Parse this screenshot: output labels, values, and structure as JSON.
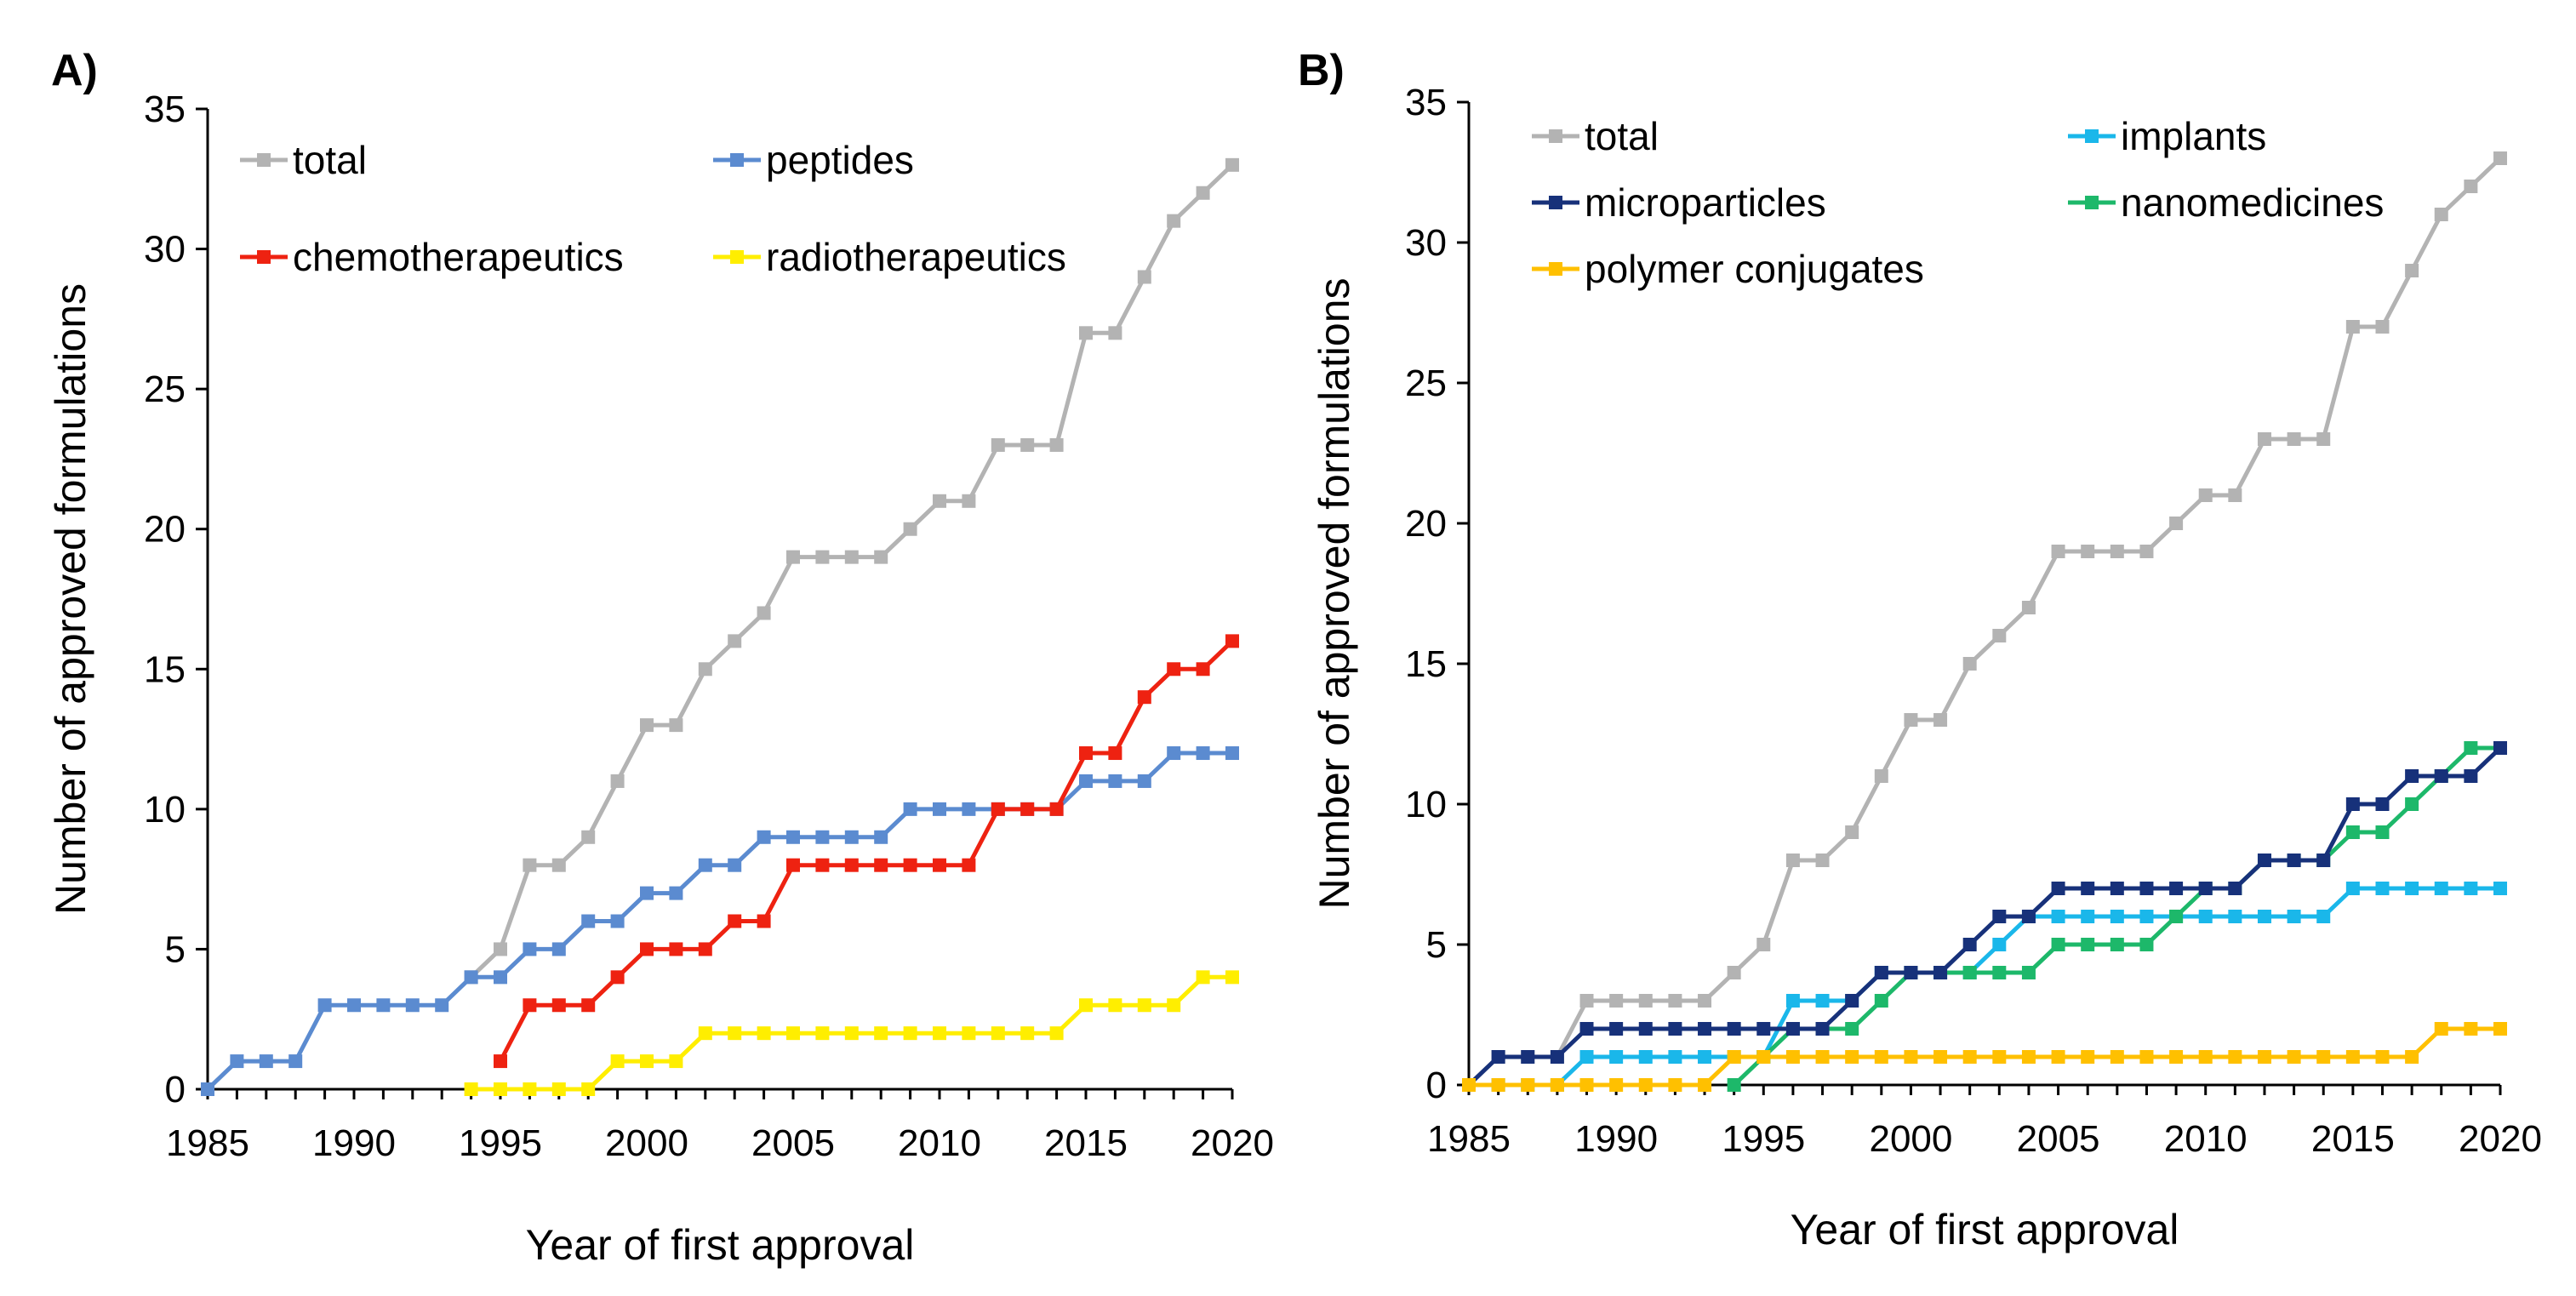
{
  "chart_data": [
    {
      "panel_label": "A)",
      "type": "line",
      "xlabel": "Year of first approval",
      "ylabel": "Number of approved formulations",
      "xlim": [
        1985,
        2020
      ],
      "ylim": [
        0,
        35
      ],
      "xticks": [
        "1985",
        "1990",
        "1995",
        "2000",
        "2005",
        "2010",
        "2015",
        "2020"
      ],
      "yticks": [
        "0",
        "5",
        "10",
        "15",
        "20",
        "25",
        "30",
        "35"
      ],
      "series": [
        {
          "name": "total",
          "color": "#b3b3b3",
          "start": 1994,
          "values": [
            4,
            5,
            8,
            8,
            9,
            11,
            13,
            13,
            15,
            16,
            17,
            19,
            19,
            19,
            19,
            20,
            21,
            21,
            23,
            23,
            23,
            27,
            27,
            29,
            31,
            32,
            33
          ]
        },
        {
          "name": "peptides",
          "color": "#5b8bd0",
          "start": 1985,
          "values": [
            0,
            1,
            1,
            1,
            3,
            3,
            3,
            3,
            3,
            4,
            4,
            5,
            5,
            6,
            6,
            7,
            7,
            8,
            8,
            9,
            9,
            9,
            9,
            9,
            10,
            10,
            10,
            10,
            10,
            10,
            11,
            11,
            11,
            12,
            12,
            12
          ]
        },
        {
          "name": "chemotherapeutics",
          "color": "#ee2211",
          "start": 1995,
          "values": [
            1,
            3,
            3,
            3,
            4,
            5,
            5,
            5,
            6,
            6,
            8,
            8,
            8,
            8,
            8,
            8,
            8,
            10,
            10,
            10,
            12,
            12,
            14,
            15,
            15,
            16
          ]
        },
        {
          "name": "radiotherapeutics",
          "color": "#ffee00",
          "start": 1994,
          "values": [
            0,
            0,
            0,
            0,
            0,
            1,
            1,
            1,
            2,
            2,
            2,
            2,
            2,
            2,
            2,
            2,
            2,
            2,
            2,
            2,
            2,
            3,
            3,
            3,
            3,
            4,
            4
          ]
        }
      ],
      "legend": [
        {
          "name": "total"
        },
        {
          "name": "peptides"
        },
        {
          "name": "chemotherapeutics"
        },
        {
          "name": "radiotherapeutics"
        }
      ]
    },
    {
      "panel_label": "B)",
      "type": "line",
      "xlabel": "Year of first approval",
      "ylabel": "Number of approved formulations",
      "xlim": [
        1985,
        2020
      ],
      "ylim": [
        0,
        35
      ],
      "xticks": [
        "1985",
        "1990",
        "1995",
        "2000",
        "2005",
        "2010",
        "2015",
        "2020"
      ],
      "yticks": [
        "0",
        "5",
        "10",
        "15",
        "20",
        "25",
        "30",
        "35"
      ],
      "series": [
        {
          "name": "total",
          "color": "#b3b3b3",
          "start": 1985,
          "values": [
            0,
            1,
            1,
            1,
            3,
            3,
            3,
            3,
            3,
            4,
            5,
            8,
            8,
            9,
            11,
            13,
            13,
            15,
            16,
            17,
            19,
            19,
            19,
            19,
            20,
            21,
            21,
            23,
            23,
            23,
            27,
            27,
            29,
            31,
            32,
            33
          ]
        },
        {
          "name": "implants",
          "color": "#1ab7ea",
          "start": 1985,
          "values": [
            0,
            0,
            0,
            0,
            1,
            1,
            1,
            1,
            1,
            1,
            1,
            3,
            3,
            3,
            4,
            4,
            4,
            4,
            5,
            6,
            6,
            6,
            6,
            6,
            6,
            6,
            6,
            6,
            6,
            6,
            7,
            7,
            7,
            7,
            7,
            7
          ]
        },
        {
          "name": "nanomedicines",
          "color": "#1db86a",
          "start": 1994,
          "values": [
            0,
            1,
            2,
            2,
            2,
            3,
            4,
            4,
            4,
            4,
            4,
            5,
            5,
            5,
            5,
            6,
            7,
            7,
            8,
            8,
            8,
            9,
            9,
            10,
            11,
            12,
            12
          ]
        },
        {
          "name": "microparticles",
          "color": "#17317a",
          "start": 1985,
          "values": [
            0,
            1,
            1,
            1,
            2,
            2,
            2,
            2,
            2,
            2,
            2,
            2,
            2,
            3,
            4,
            4,
            4,
            5,
            6,
            6,
            7,
            7,
            7,
            7,
            7,
            7,
            7,
            8,
            8,
            8,
            10,
            10,
            11,
            11,
            11,
            12
          ]
        },
        {
          "name": "polymer conjugates",
          "color": "#ffc000",
          "start": 1985,
          "values": [
            0,
            0,
            0,
            0,
            0,
            0,
            0,
            0,
            0,
            1,
            1,
            1,
            1,
            1,
            1,
            1,
            1,
            1,
            1,
            1,
            1,
            1,
            1,
            1,
            1,
            1,
            1,
            1,
            1,
            1,
            1,
            1,
            1,
            2,
            2,
            2
          ]
        }
      ],
      "legend": [
        {
          "name": "total"
        },
        {
          "name": "implants"
        },
        {
          "name": "microparticles"
        },
        {
          "name": "nanomedicines"
        },
        {
          "name": "polymer conjugates"
        }
      ]
    }
  ]
}
